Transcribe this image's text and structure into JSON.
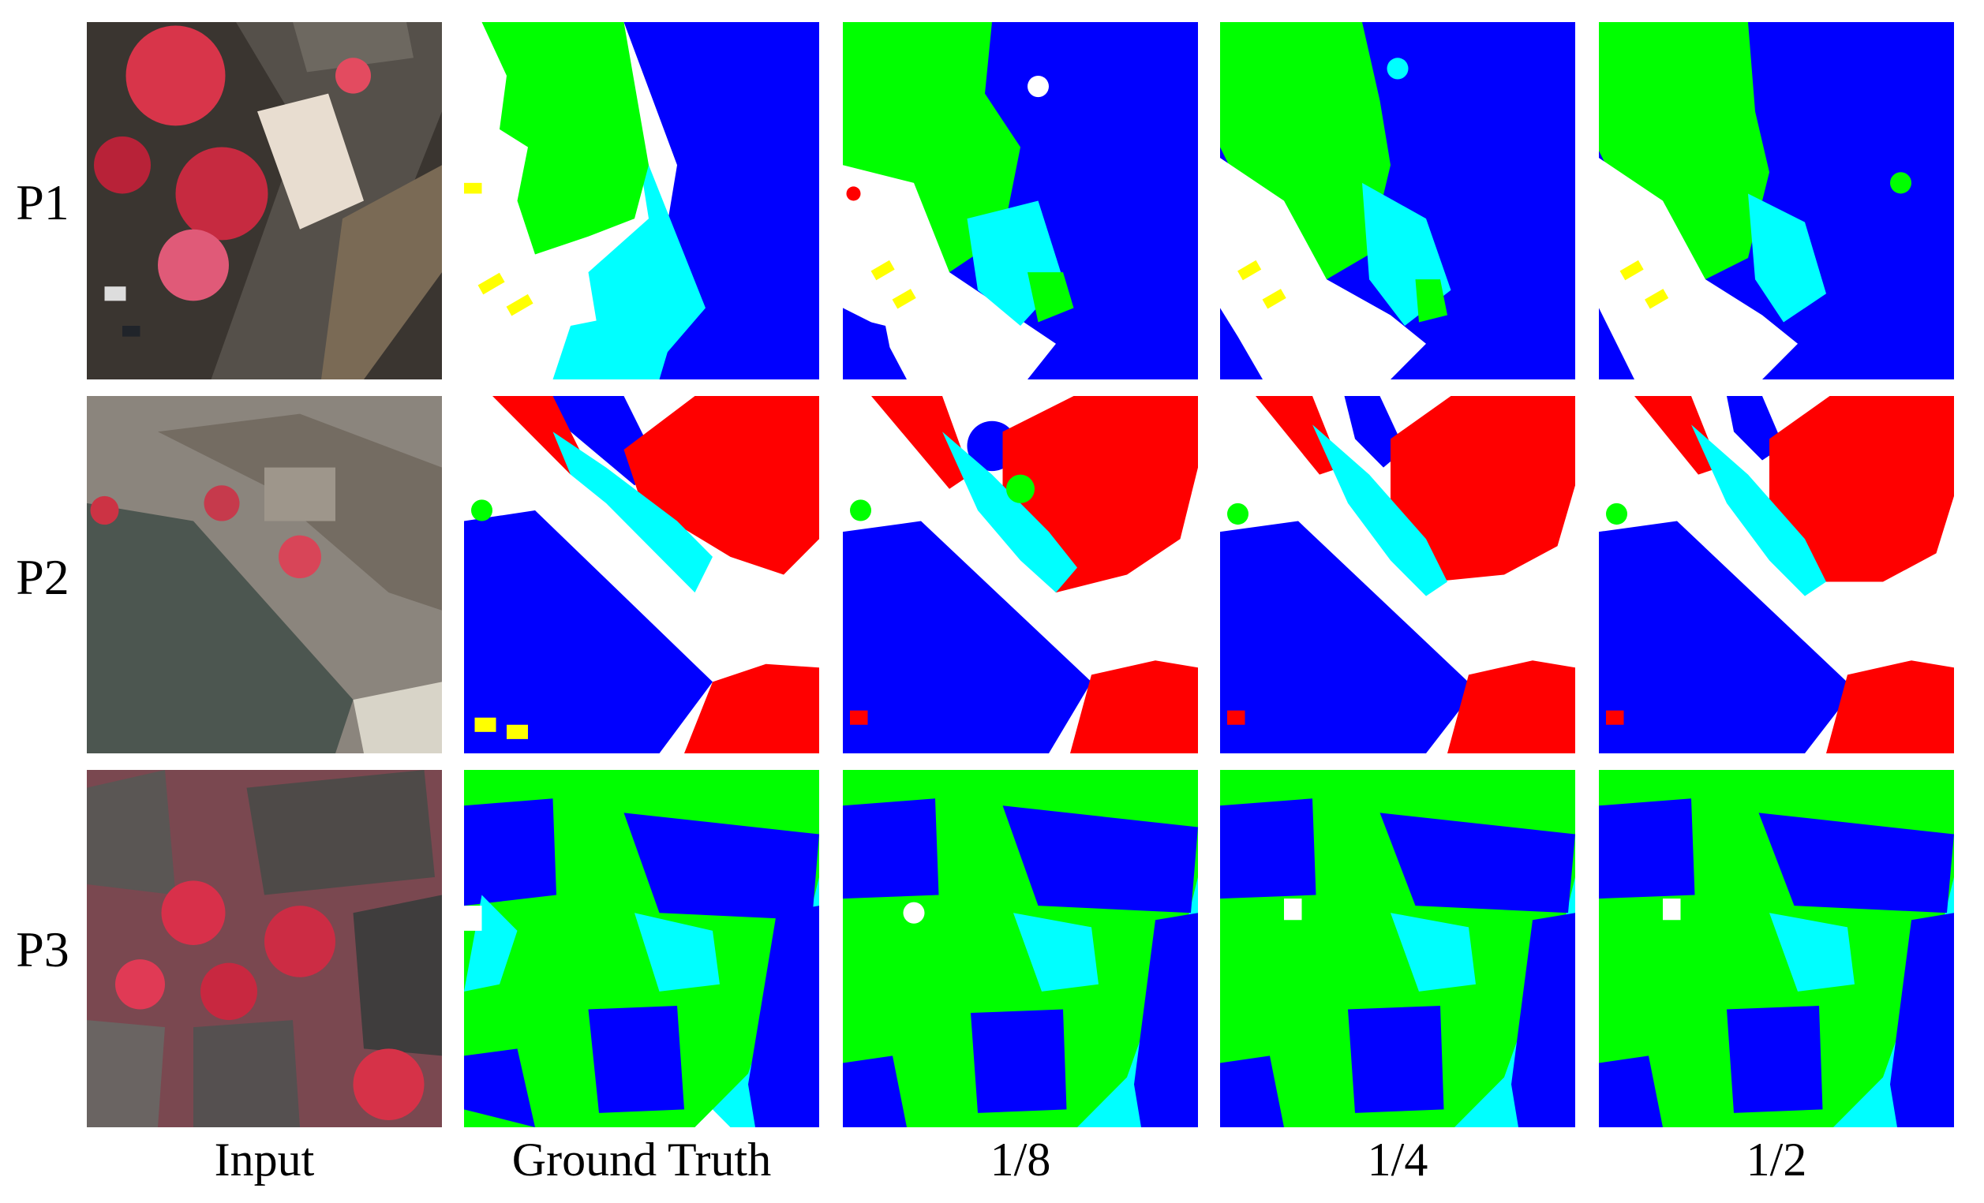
{
  "rows": [
    {
      "label": "P1"
    },
    {
      "label": "P2"
    },
    {
      "label": "P3"
    }
  ],
  "columns": [
    {
      "label": "Input"
    },
    {
      "label": "Ground Truth"
    },
    {
      "label": "1/8"
    },
    {
      "label": "1/4"
    },
    {
      "label": "1/2"
    }
  ],
  "class_colors": {
    "impervious": "#ffffff",
    "building": "#0000ff",
    "low_vegetation": "#00ffff",
    "tree": "#00ff00",
    "car": "#ffff00",
    "clutter": "#ff0000"
  }
}
